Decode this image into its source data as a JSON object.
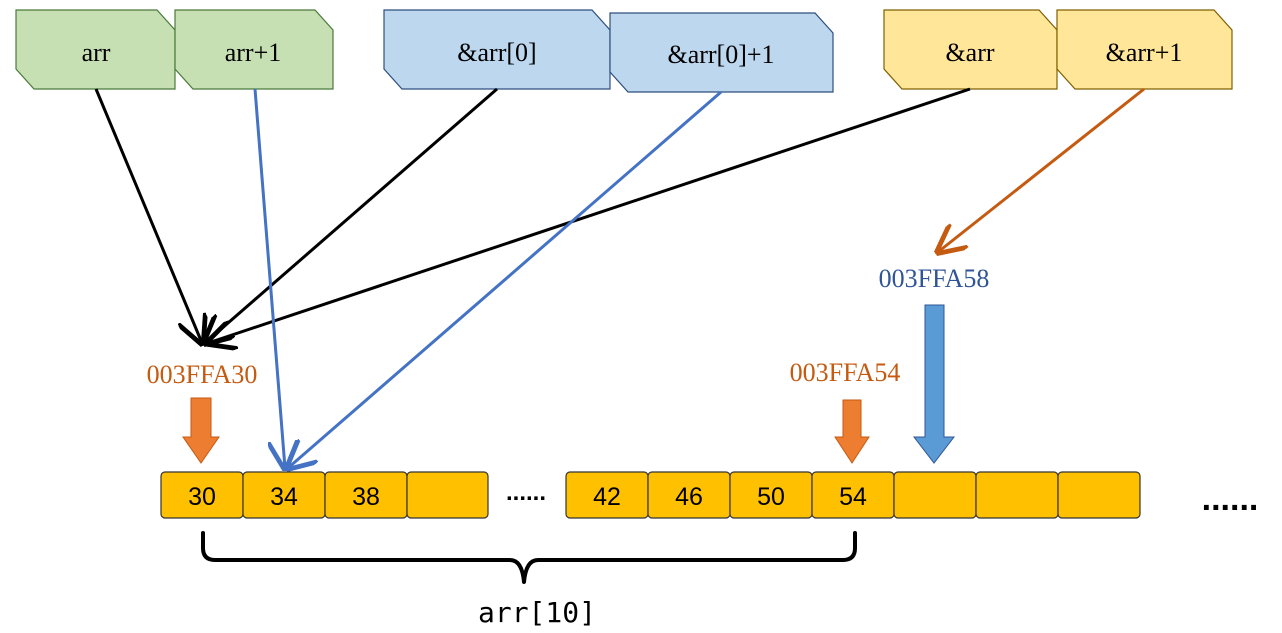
{
  "colors": {
    "green_fill": "#c6e0b4",
    "green_stroke": "#4a7a3a",
    "blue_fill": "#bdd7ee",
    "blue_stroke": "#2f4f7f",
    "yellow_fill": "#ffe699",
    "yellow_stroke": "#7f6000",
    "cell_fill": "#ffc000",
    "cell_stroke": "#333333",
    "arrow_black": "#000000",
    "arrow_blue": "#4472c4",
    "arrow_orange": "#c55a11",
    "block_orange": "#ed7d31",
    "block_blue": "#5b9bd5",
    "addr_orange": "#c55a11",
    "addr_blue": "#2f5597"
  },
  "pointer_labels": [
    "arr",
    "arr+1",
    "&arr[0]",
    "&arr[0]+1",
    "&arr",
    "&arr+1"
  ],
  "addresses": {
    "start": "003FFA30",
    "last_element": "003FFA54",
    "past_end": "003FFA58"
  },
  "cells_left": [
    "30",
    "34",
    "38",
    ""
  ],
  "cells_right": [
    "42",
    "46",
    "50",
    "54",
    "",
    "",
    ""
  ],
  "ellipsis_middle": "......",
  "ellipsis_end": "......",
  "brace_label": "arr[10]"
}
